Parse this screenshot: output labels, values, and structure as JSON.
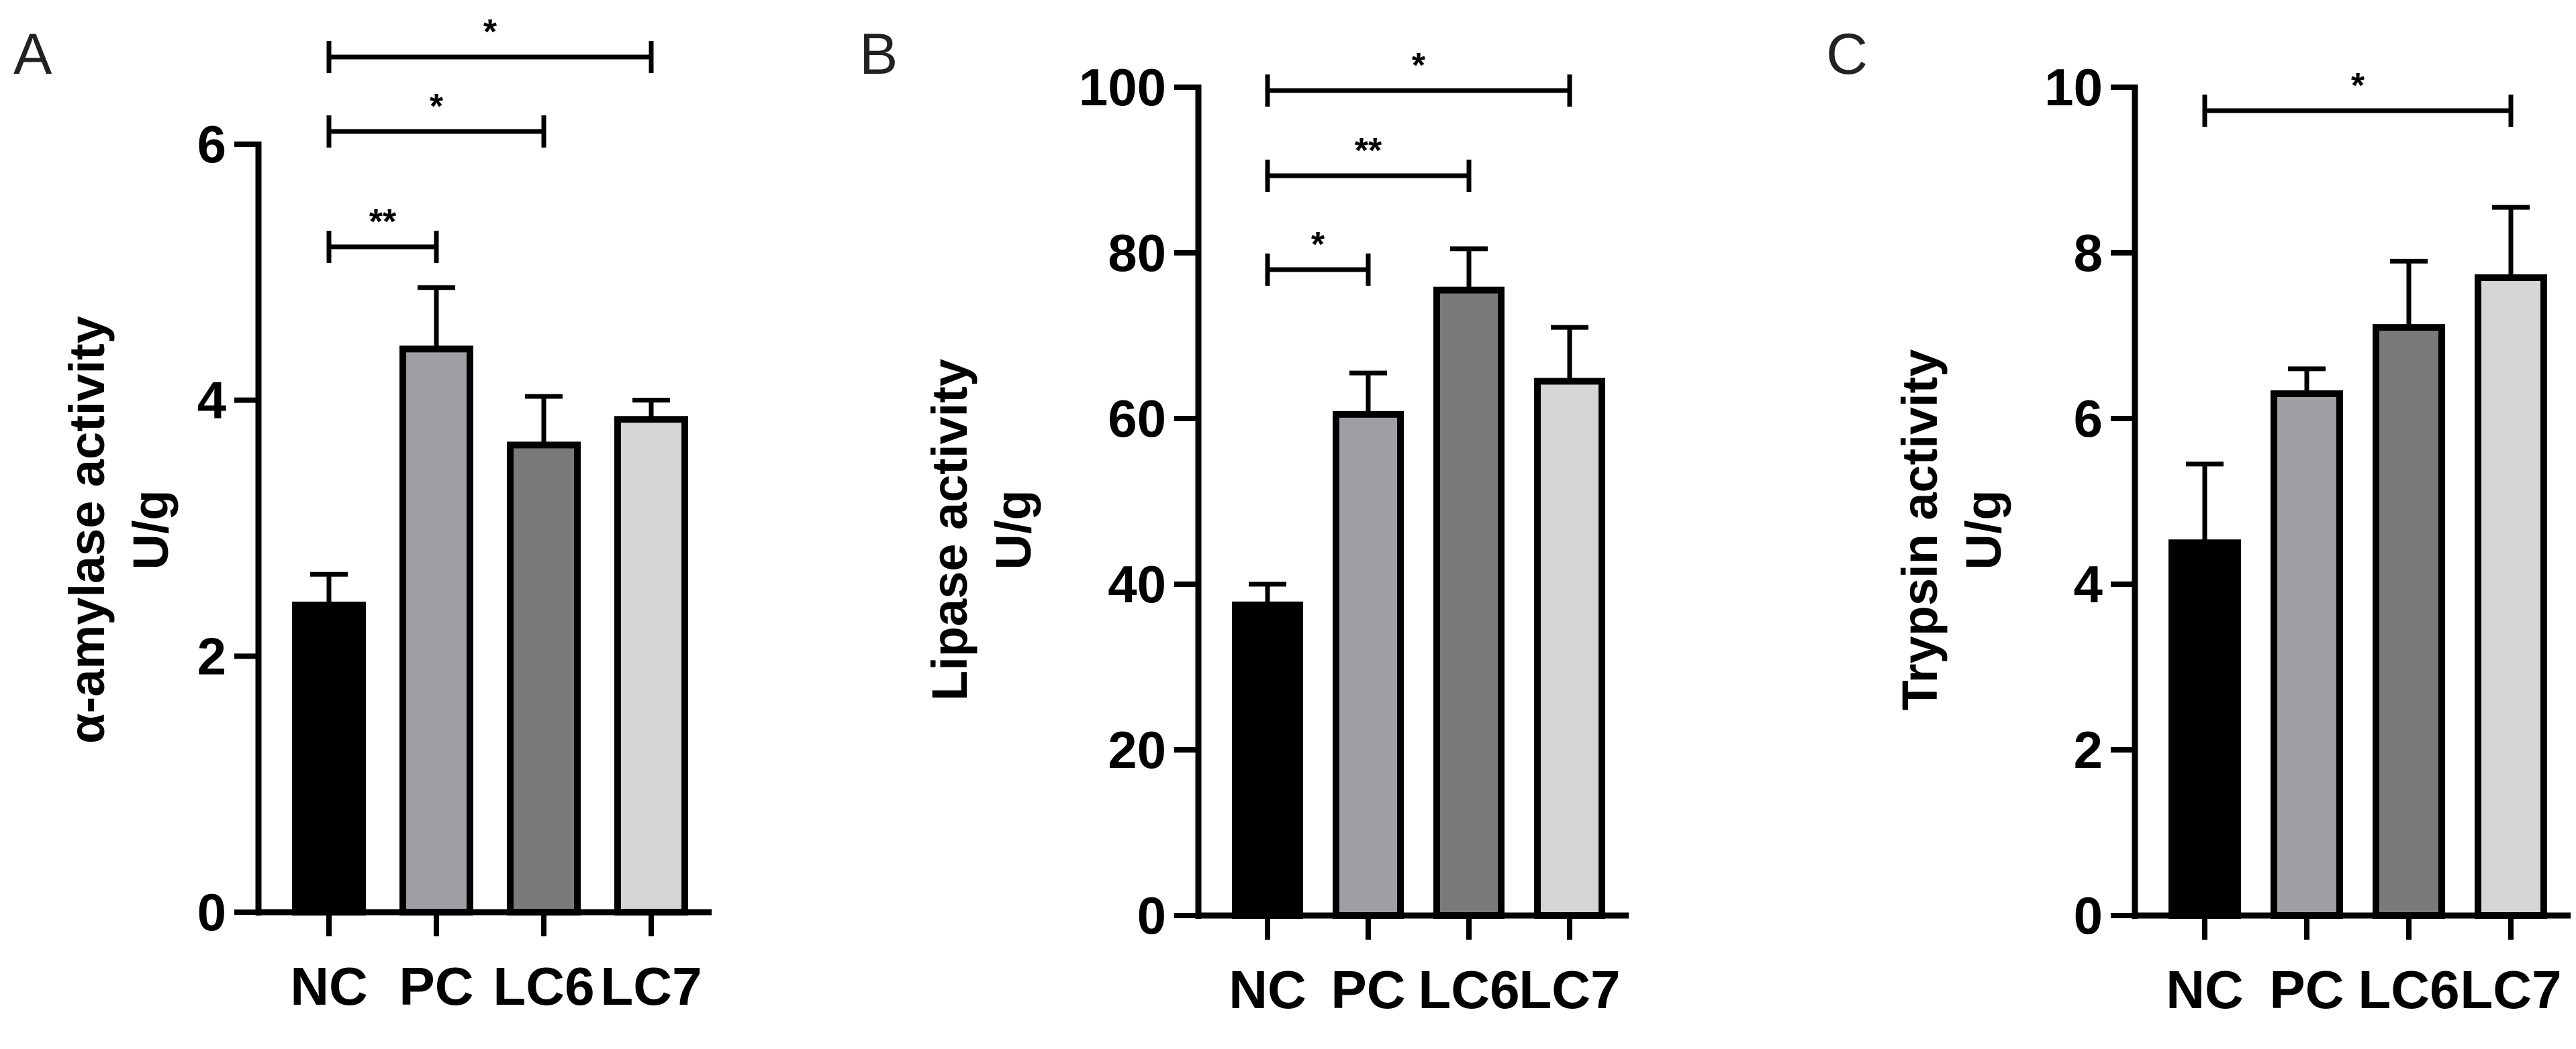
{
  "chart_data": [
    {
      "panel": "A",
      "type": "bar",
      "categories": [
        "NC",
        "PC",
        "LC6",
        "LC7"
      ],
      "values": [
        2.4,
        4.4,
        3.65,
        3.85
      ],
      "errors": [
        0.24,
        0.48,
        0.38,
        0.15
      ],
      "colors": [
        "#000000",
        "#9e9ea3",
        "#7a7a7a",
        "#d6d6d6"
      ],
      "ylabel_line1": "α-amylase activity",
      "ylabel_line2": "U/g",
      "ylim": [
        0,
        6
      ],
      "yticks": [
        0,
        2,
        4,
        6
      ],
      "grid": false,
      "significance": [
        {
          "from": 0,
          "to": 1,
          "label": "**"
        },
        {
          "from": 0,
          "to": 2,
          "label": "*"
        },
        {
          "from": 0,
          "to": 3,
          "label": "*"
        }
      ]
    },
    {
      "panel": "B",
      "type": "bar",
      "categories": [
        "NC",
        "PC",
        "LC6",
        "LC7"
      ],
      "values": [
        37.5,
        60.5,
        75.5,
        64.5
      ],
      "errors": [
        2.5,
        5.0,
        5.0,
        6.5
      ],
      "colors": [
        "#000000",
        "#9e9ea3",
        "#7a7a7a",
        "#d6d6d6"
      ],
      "ylabel_line1": "Lipase activity",
      "ylabel_line2": "U/g",
      "ylim": [
        0,
        100
      ],
      "yticks": [
        0,
        20,
        40,
        60,
        80,
        100
      ],
      "grid": false,
      "significance": [
        {
          "from": 0,
          "to": 1,
          "label": "*"
        },
        {
          "from": 0,
          "to": 2,
          "label": "**"
        },
        {
          "from": 0,
          "to": 3,
          "label": "*"
        }
      ]
    },
    {
      "panel": "C",
      "type": "bar",
      "categories": [
        "NC",
        "PC",
        "LC6",
        "LC7"
      ],
      "values": [
        4.5,
        6.3,
        7.1,
        7.7
      ],
      "errors": [
        0.95,
        0.3,
        0.8,
        0.85
      ],
      "colors": [
        "#000000",
        "#9e9ea3",
        "#7a7a7a",
        "#d6d6d6"
      ],
      "ylabel_line1": "Trypsin activity",
      "ylabel_line2": "U/g",
      "ylim": [
        0,
        10
      ],
      "yticks": [
        0,
        2,
        4,
        6,
        8,
        10
      ],
      "grid": false,
      "significance": [
        {
          "from": 0,
          "to": 3,
          "label": "*"
        }
      ]
    }
  ]
}
